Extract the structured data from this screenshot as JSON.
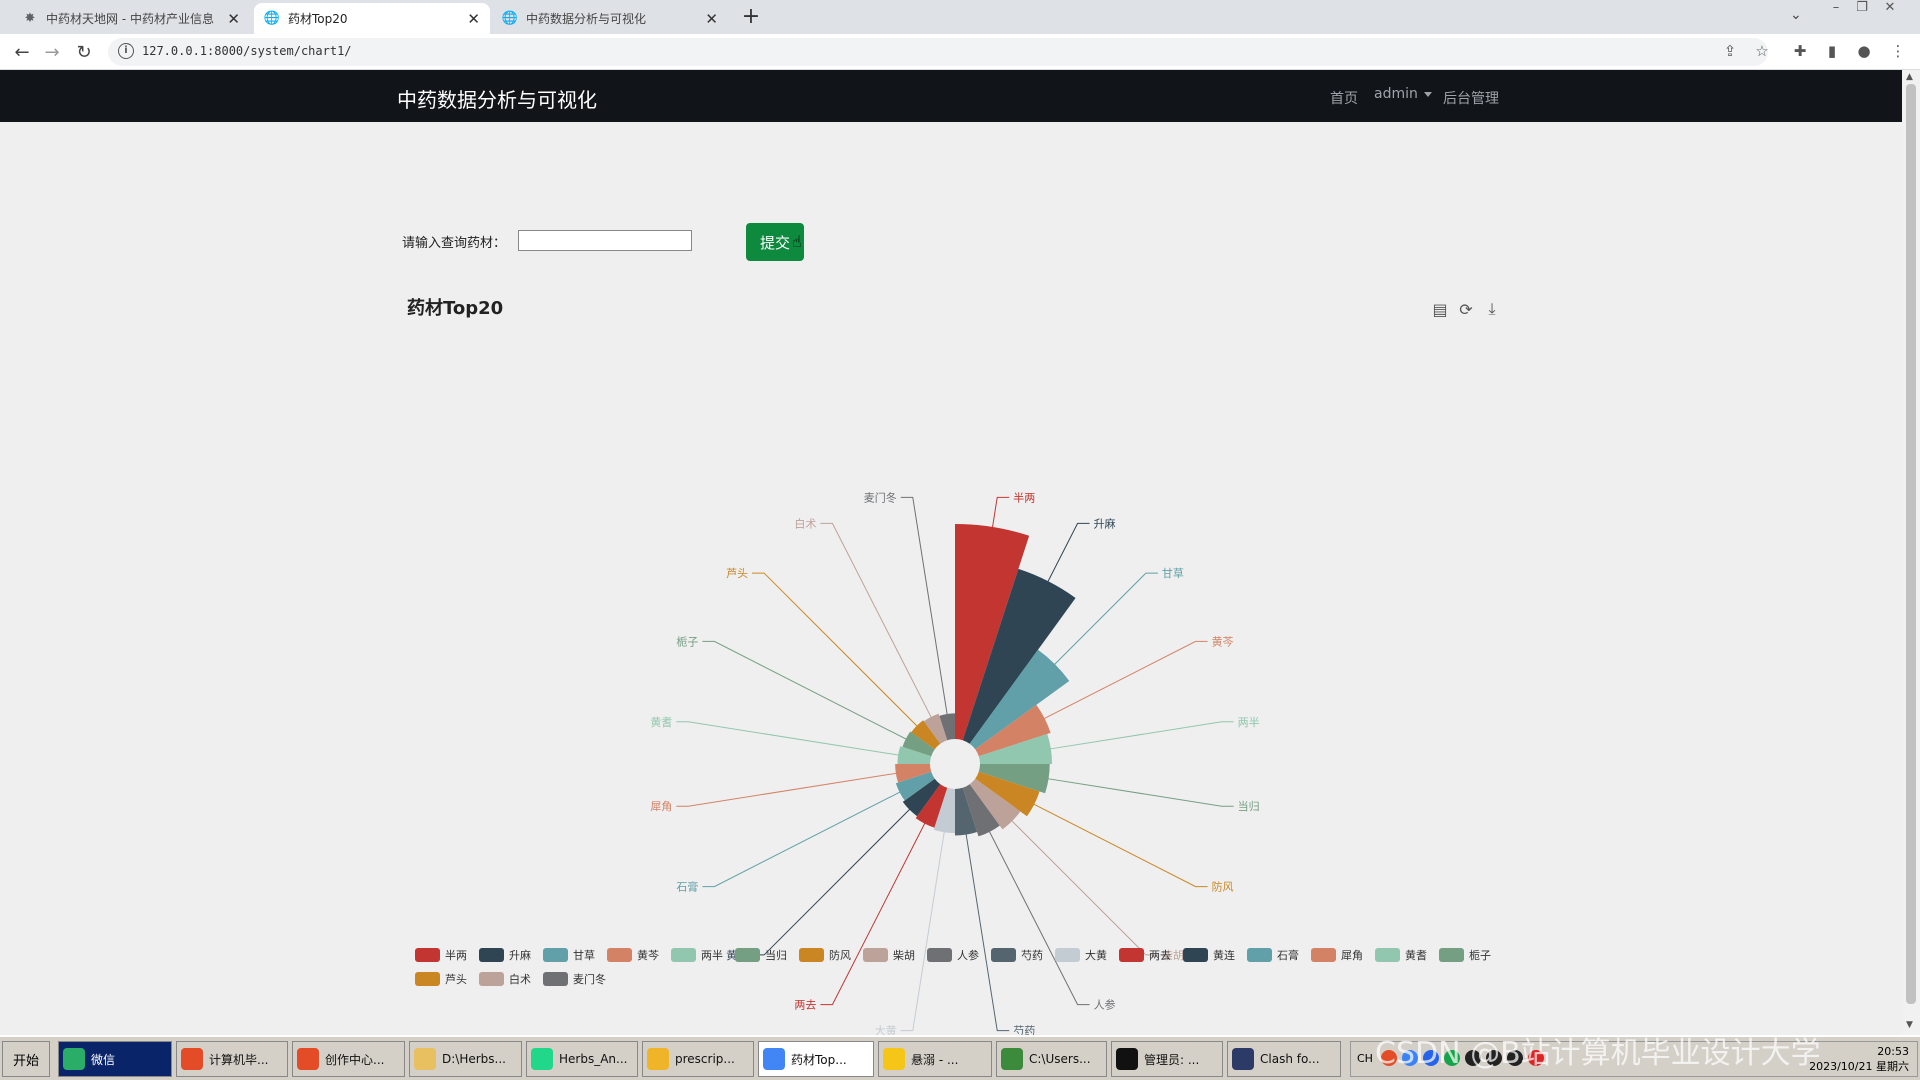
{
  "browser": {
    "tabs": [
      {
        "title": "中药材天地网 - 中药材产业信息",
        "active": false
      },
      {
        "title": "药材Top20",
        "active": true
      },
      {
        "title": "中药数据分析与可视化",
        "active": false
      }
    ],
    "url": "127.0.0.1:8000/system/chart1/"
  },
  "navbar": {
    "brand": "中药数据分析与可视化",
    "home": "首页",
    "user": "admin",
    "admin": "后台管理"
  },
  "query": {
    "label": "请输入查询药材：",
    "value": "",
    "submit": "提交"
  },
  "chart_data": {
    "type": "pie",
    "subtype": "rose",
    "title": "药材Top20",
    "categories": [
      "半两",
      "升麻",
      "甘草",
      "黄芩",
      "两半",
      "当归",
      "防风",
      "柴胡",
      "人参",
      "芍药",
      "大黄",
      "两去",
      "黄连",
      "石膏",
      "犀角",
      "黄耆",
      "栀子",
      "芦头",
      "白术",
      "麦门冬"
    ],
    "values": [
      185,
      155,
      100,
      65,
      62,
      60,
      55,
      48,
      44,
      40,
      38,
      36,
      34,
      32,
      30,
      28,
      26,
      25,
      24,
      22
    ],
    "colors": [
      "#c23531",
      "#2f4554",
      "#61a0a8",
      "#d48265",
      "#91c7ae",
      "#749f83",
      "#ca8622",
      "#bda29a",
      "#6e7074",
      "#546570",
      "#c4ccd3",
      "#c23531",
      "#2f4554",
      "#61a0a8",
      "#d48265",
      "#91c7ae",
      "#749f83",
      "#ca8622",
      "#bda29a",
      "#6e7074"
    ],
    "legend": "bottom"
  },
  "taskbar": {
    "start": "开始",
    "items": [
      {
        "label": "微信",
        "color": "#2aae67"
      },
      {
        "label": "计算机毕...",
        "color": "#e34c26"
      },
      {
        "label": "创作中心...",
        "color": "#e34c26"
      },
      {
        "label": "D:\\Herbs...",
        "color": "#e8c060"
      },
      {
        "label": "Herbs_An...",
        "color": "#21d789"
      },
      {
        "label": "prescrip...",
        "color": "#f0b429"
      },
      {
        "label": "药材Top...",
        "color": "#4285f4"
      },
      {
        "label": "悬溺 - ...",
        "color": "#f5c518"
      },
      {
        "label": "C:\\Users...",
        "color": "#3c8a3c"
      },
      {
        "label": "管理员: ...",
        "color": "#111111"
      },
      {
        "label": "Clash fo...",
        "color": "#2b3a67"
      }
    ],
    "lang": "CH",
    "time": "20:53",
    "date": "2023/10/21 星期六"
  },
  "watermark": "CSDN @B站计算机毕业设计大学"
}
